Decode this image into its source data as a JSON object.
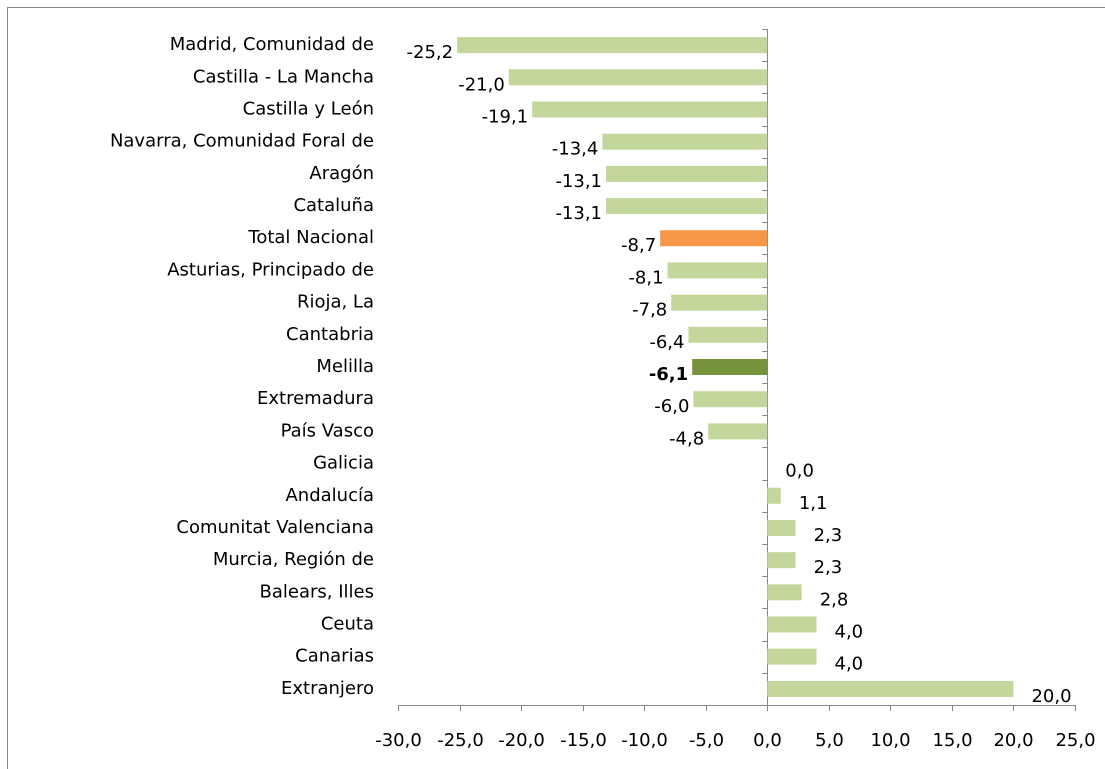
{
  "chart_data": {
    "type": "hbar",
    "categories": [
      "Madrid, Comunidad de",
      "Castilla - La Mancha",
      "Castilla y León",
      "Navarra, Comunidad Foral de",
      "Aragón",
      "Cataluña",
      "Total Nacional",
      "Asturias, Principado de",
      "Rioja, La",
      "Cantabria",
      "Melilla",
      "Extremadura",
      "País Vasco",
      "Galicia",
      "Andalucía",
      "Comunitat Valenciana",
      "Murcia, Región de",
      "Balears, Illes",
      "Ceuta",
      "Canarias",
      "Extranjero"
    ],
    "values": [
      -25.2,
      -21.0,
      -19.1,
      -13.4,
      -13.1,
      -13.1,
      -8.7,
      -8.1,
      -7.8,
      -6.4,
      -6.1,
      -6.0,
      -4.8,
      0.0,
      1.1,
      2.3,
      2.3,
      2.8,
      4.0,
      4.0,
      20.0
    ],
    "value_labels": [
      "-25,2",
      "-21,0",
      "-19,1",
      "-13,4",
      "-13,1",
      "-13,1",
      "-8,7",
      "-8,1",
      "-7,8",
      "-6,4",
      "-6,1",
      "-6,0",
      "-4,8",
      "0,0",
      "1,1",
      "2,3",
      "2,3",
      "2,8",
      "4,0",
      "4,0",
      "20,0"
    ],
    "colors": [
      "#c3d69b",
      "#c3d69b",
      "#c3d69b",
      "#c3d69b",
      "#c3d69b",
      "#c3d69b",
      "#f79646",
      "#c3d69b",
      "#c3d69b",
      "#c3d69b",
      "#77933c",
      "#c3d69b",
      "#c3d69b",
      "#c3d69b",
      "#c3d69b",
      "#c3d69b",
      "#c3d69b",
      "#c3d69b",
      "#c3d69b",
      "#c3d69b",
      "#c3d69b"
    ],
    "bold_value_labels": [
      false,
      false,
      false,
      false,
      false,
      false,
      false,
      false,
      false,
      false,
      true,
      false,
      false,
      false,
      false,
      false,
      false,
      false,
      false,
      false,
      false
    ],
    "xlim": [
      -30,
      25
    ],
    "xticks": [
      {
        "value": -30,
        "label": "-30,0"
      },
      {
        "value": -25,
        "label": "-25,0"
      },
      {
        "value": -20,
        "label": "-20,0"
      },
      {
        "value": -15,
        "label": "-15,0"
      },
      {
        "value": -10,
        "label": "-10,0"
      },
      {
        "value": -5,
        "label": "-5,0"
      },
      {
        "value": 0,
        "label": "0,0"
      },
      {
        "value": 5,
        "label": "5,0"
      },
      {
        "value": 10,
        "label": "10,0"
      },
      {
        "value": 15,
        "label": "15,0"
      },
      {
        "value": 20,
        "label": "20,0"
      },
      {
        "value": 25,
        "label": "25,0"
      }
    ]
  }
}
